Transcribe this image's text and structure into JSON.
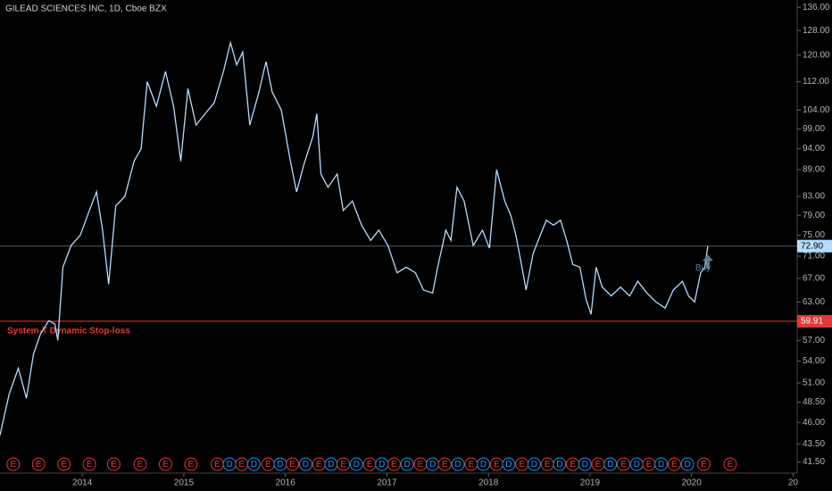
{
  "chart_data": {
    "type": "line",
    "title": "GILEAD SCIENCES INC, 1D, Cboe BZX",
    "log_scale": true,
    "color": "#b6dcff",
    "x": [
      2013.19,
      2013.28,
      2013.37,
      2013.45,
      2013.52,
      2013.59,
      2013.67,
      2013.73,
      2013.76,
      2013.81,
      2013.89,
      2013.98,
      2014.07,
      2014.14,
      2014.2,
      2014.26,
      2014.33,
      2014.42,
      2014.51,
      2014.58,
      2014.64,
      2014.73,
      2014.82,
      2014.9,
      2014.97,
      2015.04,
      2015.12,
      2015.21,
      2015.3,
      2015.39,
      2015.46,
      2015.52,
      2015.58,
      2015.65,
      2015.74,
      2015.81,
      2015.87,
      2015.96,
      2016.05,
      2016.11,
      2016.18,
      2016.27,
      2016.31,
      2016.35,
      2016.42,
      2016.51,
      2016.57,
      2016.66,
      2016.75,
      2016.84,
      2016.92,
      2017.01,
      2017.1,
      2017.19,
      2017.28,
      2017.36,
      2017.45,
      2017.5,
      2017.58,
      2017.63,
      2017.69,
      2017.76,
      2017.85,
      2017.94,
      2018.01,
      2018.08,
      2018.16,
      2018.22,
      2018.27,
      2018.33,
      2018.37,
      2018.44,
      2018.51,
      2018.57,
      2018.64,
      2018.71,
      2018.77,
      2018.83,
      2018.9,
      2018.96,
      2019.01,
      2019.06,
      2019.12,
      2019.21,
      2019.3,
      2019.39,
      2019.47,
      2019.56,
      2019.65,
      2019.74,
      2019.82,
      2019.91,
      2019.97,
      2020.03,
      2020.09,
      2020.13,
      2020.16
    ],
    "values": [
      44.5,
      49.5,
      53,
      49,
      55,
      58,
      60,
      59.5,
      57,
      69,
      73,
      75,
      80,
      84,
      76,
      66,
      81,
      83,
      91,
      94,
      112,
      105,
      115,
      105,
      91,
      110,
      100,
      103,
      106,
      115,
      124,
      117,
      121,
      100,
      109,
      118,
      109,
      104,
      91,
      84,
      90,
      97,
      103,
      88,
      85,
      88,
      80,
      82,
      77,
      74,
      76,
      73,
      68,
      69,
      68,
      65,
      64.5,
      69,
      76,
      74,
      85,
      82,
      73,
      76,
      72.5,
      89,
      82,
      79,
      75,
      69,
      65,
      71.5,
      75,
      78,
      77,
      78,
      74,
      69.5,
      69,
      63.5,
      61,
      69,
      65.5,
      64,
      65.5,
      64,
      66.5,
      64.5,
      63,
      62,
      65,
      66.5,
      64,
      63,
      68,
      69,
      72.9
    ],
    "xlim": [
      2013.19,
      2021.04
    ],
    "xticks": [
      2014,
      2015,
      2016,
      2017,
      2018,
      2019,
      2020,
      {
        "value": 2021,
        "label": "20"
      }
    ],
    "ylim": [
      40.3,
      138.6
    ],
    "yticks": [
      {
        "value": 136,
        "label": "136.00"
      },
      {
        "value": 128,
        "label": "128.00"
      },
      {
        "value": 120,
        "label": "120.00"
      },
      {
        "value": 112,
        "label": "112.00"
      },
      {
        "value": 104,
        "label": "104.00"
      },
      {
        "value": 99,
        "label": "99.00"
      },
      {
        "value": 94,
        "label": "94.00"
      },
      {
        "value": 89,
        "label": "89.00"
      },
      {
        "value": 83,
        "label": "83.00"
      },
      {
        "value": 79,
        "label": "79.00"
      },
      {
        "value": 75,
        "label": "75.00"
      },
      {
        "value": 71,
        "label": "71.00"
      },
      {
        "value": 67,
        "label": "67.00"
      },
      {
        "value": 63,
        "label": "63.00"
      },
      {
        "value": 57,
        "label": "57.00"
      },
      {
        "value": 54,
        "label": "54.00"
      },
      {
        "value": 51,
        "label": "51.00"
      },
      {
        "value": 48.5,
        "label": "48.50"
      },
      {
        "value": 46,
        "label": "46.00"
      },
      {
        "value": 43.5,
        "label": "43.50"
      },
      {
        "value": 41.5,
        "label": "41.50"
      }
    ],
    "stop_loss": {
      "value": 59.91,
      "label": "59.91",
      "text": "System-T Dynamic Stop-loss",
      "color": "#e53935"
    },
    "last_price": {
      "value": 72.9,
      "label": "72.90",
      "color": "#b6dcff"
    },
    "buy": {
      "x": 2020.16,
      "value": 69,
      "text": "Buy"
    },
    "events": [
      {
        "x": 2013.32,
        "label": "E"
      },
      {
        "x": 2013.57,
        "label": "E"
      },
      {
        "x": 2013.82,
        "label": "E"
      },
      {
        "x": 2014.07,
        "label": "E"
      },
      {
        "x": 2014.31,
        "label": "E"
      },
      {
        "x": 2014.57,
        "label": "E"
      },
      {
        "x": 2014.82,
        "label": "E"
      },
      {
        "x": 2015.07,
        "label": "E"
      },
      {
        "x": 2015.33,
        "label": "E"
      },
      {
        "x": 2015.45,
        "label": "D"
      },
      {
        "x": 2015.57,
        "label": "E"
      },
      {
        "x": 2015.69,
        "label": "D"
      },
      {
        "x": 2015.83,
        "label": "E"
      },
      {
        "x": 2015.95,
        "label": "D"
      },
      {
        "x": 2016.07,
        "label": "E"
      },
      {
        "x": 2016.2,
        "label": "D"
      },
      {
        "x": 2016.33,
        "label": "E"
      },
      {
        "x": 2016.45,
        "label": "D"
      },
      {
        "x": 2016.57,
        "label": "E"
      },
      {
        "x": 2016.7,
        "label": "D"
      },
      {
        "x": 2016.83,
        "label": "E"
      },
      {
        "x": 2016.95,
        "label": "D"
      },
      {
        "x": 2017.07,
        "label": "E"
      },
      {
        "x": 2017.2,
        "label": "D"
      },
      {
        "x": 2017.33,
        "label": "E"
      },
      {
        "x": 2017.45,
        "label": "D"
      },
      {
        "x": 2017.57,
        "label": "E"
      },
      {
        "x": 2017.7,
        "label": "D"
      },
      {
        "x": 2017.83,
        "label": "E"
      },
      {
        "x": 2017.95,
        "label": "D"
      },
      {
        "x": 2018.08,
        "label": "E"
      },
      {
        "x": 2018.2,
        "label": "D"
      },
      {
        "x": 2018.33,
        "label": "E"
      },
      {
        "x": 2018.45,
        "label": "D"
      },
      {
        "x": 2018.58,
        "label": "E"
      },
      {
        "x": 2018.7,
        "label": "D"
      },
      {
        "x": 2018.83,
        "label": "E"
      },
      {
        "x": 2018.95,
        "label": "D"
      },
      {
        "x": 2019.08,
        "label": "E"
      },
      {
        "x": 2019.2,
        "label": "D"
      },
      {
        "x": 2019.33,
        "label": "E"
      },
      {
        "x": 2019.46,
        "label": "D"
      },
      {
        "x": 2019.58,
        "label": "E"
      },
      {
        "x": 2019.7,
        "label": "D"
      },
      {
        "x": 2019.83,
        "label": "E"
      },
      {
        "x": 2019.96,
        "label": "D"
      },
      {
        "x": 2020.12,
        "label": "E"
      },
      {
        "x": 2020.38,
        "label": "E"
      }
    ]
  }
}
